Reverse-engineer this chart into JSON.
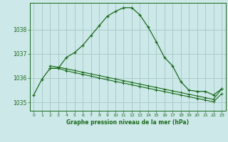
{
  "background_color": "#cce8e8",
  "grid_color": "#aacccc",
  "line_color": "#1a6b1a",
  "xlabel": "Graphe pression niveau de la mer (hPa)",
  "xlim": [
    -0.5,
    23.5
  ],
  "ylim": [
    1034.65,
    1039.1
  ],
  "yticks": [
    1035,
    1036,
    1037,
    1038
  ],
  "xticks": [
    0,
    1,
    2,
    3,
    4,
    5,
    6,
    7,
    8,
    9,
    10,
    11,
    12,
    13,
    14,
    15,
    16,
    17,
    18,
    19,
    20,
    21,
    22,
    23
  ],
  "line1_x": [
    0,
    1,
    2,
    3,
    4,
    5,
    6,
    7,
    8,
    9,
    10,
    11,
    12,
    13,
    14,
    15,
    16,
    17,
    18,
    19,
    20,
    21,
    22,
    23
  ],
  "line1_y": [
    1035.3,
    1035.95,
    1036.4,
    1036.4,
    1036.85,
    1037.05,
    1037.35,
    1037.75,
    1038.15,
    1038.55,
    1038.75,
    1038.9,
    1038.9,
    1038.6,
    1038.1,
    1037.5,
    1036.85,
    1036.5,
    1035.85,
    1035.5,
    1035.45,
    1035.45,
    1035.3,
    1035.55
  ],
  "line2_x": [
    2,
    3,
    4,
    5,
    6,
    7,
    8,
    9,
    10,
    11,
    12,
    13,
    14,
    15,
    16,
    17,
    18,
    19,
    20,
    21,
    22,
    23
  ],
  "line2_y": [
    1036.4,
    1036.4,
    1036.3,
    1036.22,
    1036.15,
    1036.08,
    1036.0,
    1035.93,
    1035.86,
    1035.79,
    1035.72,
    1035.65,
    1035.58,
    1035.51,
    1035.44,
    1035.37,
    1035.3,
    1035.23,
    1035.16,
    1035.09,
    1035.02,
    1035.35
  ],
  "line3_x": [
    2,
    3,
    4,
    5,
    6,
    7,
    8,
    9,
    10,
    11,
    12,
    13,
    14,
    15,
    16,
    17,
    18,
    19,
    20,
    21,
    22,
    23
  ],
  "line3_y": [
    1036.5,
    1036.45,
    1036.38,
    1036.31,
    1036.24,
    1036.17,
    1036.1,
    1036.03,
    1035.96,
    1035.89,
    1035.82,
    1035.75,
    1035.68,
    1035.61,
    1035.54,
    1035.47,
    1035.4,
    1035.33,
    1035.26,
    1035.19,
    1035.12,
    1035.55
  ]
}
